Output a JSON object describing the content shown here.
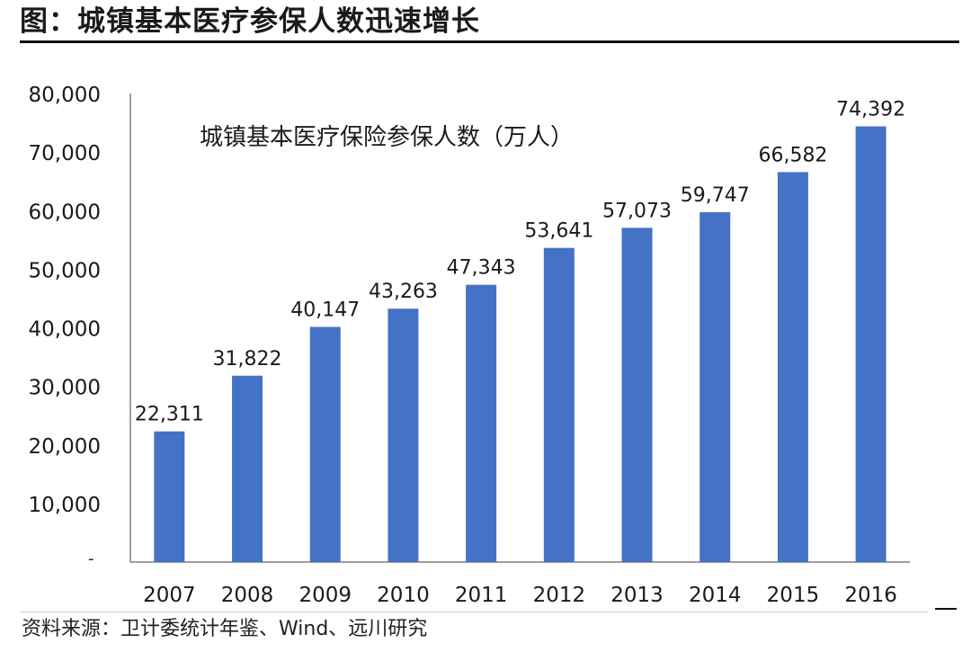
{
  "header": {
    "title": "图：城镇基本医疗参保人数迅速增长"
  },
  "source": {
    "text": "资料来源：卫计委统计年鉴、Wind、远川研究"
  },
  "colors": {
    "bar": "#4472c4",
    "axis": "#7f7f7f",
    "text": "#1a1a1a"
  },
  "chart_data": {
    "type": "bar",
    "title": "城镇基本医疗保险参保人数（万人）",
    "xlabel": "",
    "ylabel": "",
    "categories": [
      "2007",
      "2008",
      "2009",
      "2010",
      "2011",
      "2012",
      "2013",
      "2014",
      "2015",
      "2016"
    ],
    "values": [
      22311,
      31822,
      40147,
      43263,
      47343,
      53641,
      57073,
      59747,
      66582,
      74392
    ],
    "data_labels": [
      "22,311",
      "31,822",
      "40,147",
      "43,263",
      "47,343",
      "53,641",
      "57,073",
      "59,747",
      "66,582",
      "74,392"
    ],
    "ylim": [
      0,
      80000
    ],
    "yticks": [
      0,
      10000,
      20000,
      30000,
      40000,
      50000,
      60000,
      70000,
      80000
    ],
    "ytick_labels": [
      "-",
      "10,000",
      "20,000",
      "30,000",
      "40,000",
      "50,000",
      "60,000",
      "70,000",
      "80,000"
    ],
    "grid": false,
    "legend": "none"
  }
}
